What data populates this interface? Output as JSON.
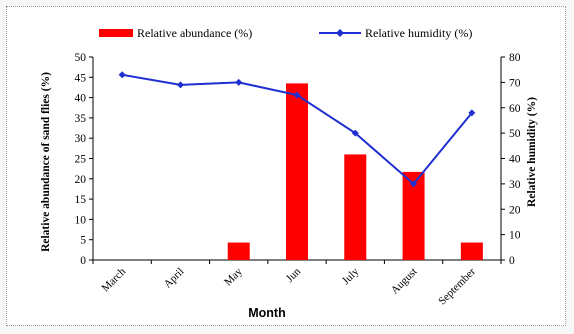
{
  "chart_data": {
    "type": "bar+line",
    "categories": [
      "March",
      "April",
      "May",
      "Jun",
      "July",
      "August",
      "September"
    ],
    "series": [
      {
        "name": "Relative abundance (%)",
        "kind": "bar",
        "axis": "left",
        "color": "#ff0000",
        "values": [
          0,
          0,
          4.3,
          43.5,
          26,
          21.7,
          4.3
        ]
      },
      {
        "name": "Relative humidity (%)",
        "kind": "line",
        "axis": "right",
        "color": "#1f2fd1",
        "values": [
          73,
          69,
          70,
          65,
          50,
          30,
          58
        ]
      }
    ],
    "xlabel": "Month",
    "ylabel_left": "Relative abundance of sand flies (%)",
    "ylabel_right": "Relative humidity (%)",
    "ylim_left": [
      0,
      50
    ],
    "ylim_right": [
      0,
      80
    ],
    "yticks_left": [
      "0",
      "5",
      "10",
      "15",
      "20",
      "25",
      "30",
      "35",
      "40",
      "45",
      "50"
    ],
    "yticks_right": [
      "0",
      "10",
      "20",
      "30",
      "40",
      "50",
      "60",
      "70",
      "80"
    ],
    "legend_position": "top",
    "grid": false
  }
}
